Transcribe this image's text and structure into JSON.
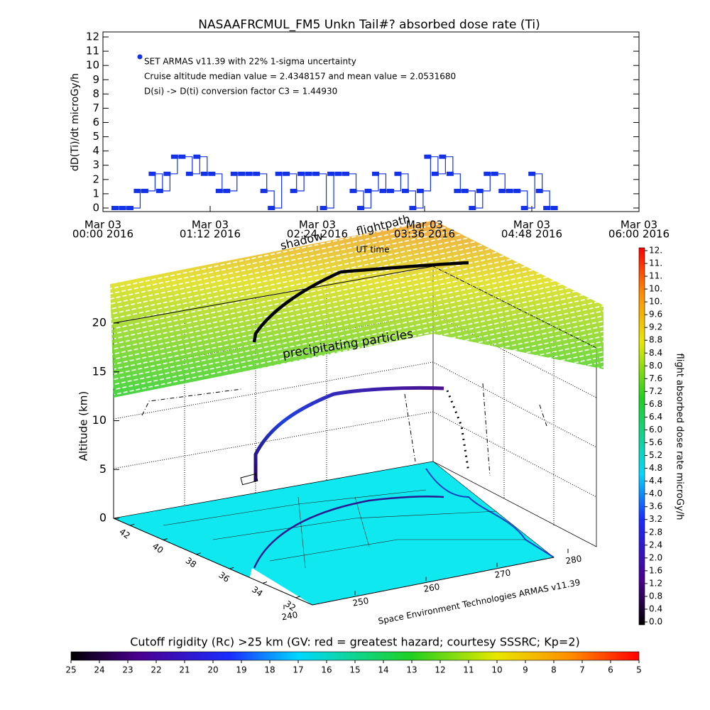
{
  "chart_data": [
    {
      "type": "line",
      "title": "NASAAFRCMUL_FM5 Unkn Tail#? absorbed dose rate (Ti)",
      "ylabel": "dD(Ti)/dt microGy/h",
      "xlabel": "UT time",
      "annotations": [
        "SET ARMAS v11.39 with 22% 1-sigma uncertainty",
        "Cruise altitude median value = 2.4348157 and mean value = 2.0531680",
        "D(si) -> D(ti) conversion factor C3 = 1.44930"
      ],
      "xlim": [
        "2016-03-03 00:00",
        "2016-03-03 06:00"
      ],
      "xticks": [
        {
          "value": "2016-03-03 00:00",
          "label": [
            "Mar 03",
            "00:00 2016"
          ]
        },
        {
          "value": "2016-03-03 01:12",
          "label": [
            "Mar 03",
            "01:12 2016"
          ]
        },
        {
          "value": "2016-03-03 02:24",
          "label": [
            "Mar 03",
            "02:24 2016"
          ]
        },
        {
          "value": "2016-03-03 03:36",
          "label": [
            "Mar 03",
            "03:36 2016"
          ]
        },
        {
          "value": "2016-03-03 04:48",
          "label": [
            "Mar 03",
            "04:48 2016"
          ]
        },
        {
          "value": "2016-03-03 06:00",
          "label": [
            "Mar 03",
            "06:00 2016"
          ]
        }
      ],
      "ylim": [
        -0.25,
        12.35
      ],
      "yticks": [
        0,
        1,
        2,
        3,
        4,
        5,
        6,
        7,
        8,
        9,
        10,
        11,
        12
      ],
      "x": [
        "2016-03-03 00:10",
        "2016-03-03 00:15",
        "2016-03-03 00:20",
        "2016-03-03 00:25",
        "2016-03-03 00:30",
        "2016-03-03 00:35",
        "2016-03-03 00:40",
        "2016-03-03 00:45",
        "2016-03-03 00:50",
        "2016-03-03 00:55",
        "2016-03-03 01:00",
        "2016-03-03 01:05",
        "2016-03-03 01:10",
        "2016-03-03 01:15",
        "2016-03-03 01:20",
        "2016-03-03 01:25",
        "2016-03-03 01:30",
        "2016-03-03 01:35",
        "2016-03-03 01:40",
        "2016-03-03 01:45",
        "2016-03-03 01:50",
        "2016-03-03 01:55",
        "2016-03-03 02:00",
        "2016-03-03 02:05",
        "2016-03-03 02:10",
        "2016-03-03 02:15",
        "2016-03-03 02:20",
        "2016-03-03 02:25",
        "2016-03-03 02:30",
        "2016-03-03 02:35",
        "2016-03-03 02:40",
        "2016-03-03 02:45",
        "2016-03-03 02:50",
        "2016-03-03 02:55",
        "2016-03-03 03:00",
        "2016-03-03 03:05",
        "2016-03-03 03:10",
        "2016-03-03 03:15",
        "2016-03-03 03:20",
        "2016-03-03 03:25",
        "2016-03-03 03:30",
        "2016-03-03 03:35",
        "2016-03-03 03:40",
        "2016-03-03 03:45",
        "2016-03-03 03:50",
        "2016-03-03 03:55",
        "2016-03-03 04:00",
        "2016-03-03 04:05",
        "2016-03-03 04:10",
        "2016-03-03 04:15",
        "2016-03-03 04:20",
        "2016-03-03 04:25",
        "2016-03-03 04:30",
        "2016-03-03 04:35",
        "2016-03-03 04:40",
        "2016-03-03 04:45",
        "2016-03-03 04:50",
        "2016-03-03 04:55",
        "2016-03-03 05:00",
        "2016-03-03 05:05"
      ],
      "series": [
        {
          "color": "#1432e6",
          "values": [
            0,
            0,
            0,
            1.2,
            1.2,
            2.4,
            1.2,
            2.4,
            3.6,
            3.6,
            2.4,
            3.6,
            2.4,
            2.4,
            1.2,
            1.2,
            2.4,
            2.4,
            2.4,
            2.4,
            1.2,
            0,
            2.4,
            2.4,
            1.2,
            2.4,
            2.4,
            2.4,
            0,
            2.4,
            2.4,
            2.4,
            1.2,
            0,
            1.2,
            2.4,
            1.2,
            1.2,
            2.4,
            1.2,
            0,
            1.2,
            3.6,
            2.4,
            3.6,
            2.4,
            1.2,
            1.2,
            0,
            1.2,
            2.4,
            2.4,
            1.2,
            1.2,
            1.2,
            0,
            2.4,
            1.2,
            0,
            0
          ]
        }
      ]
    },
    {
      "type": "surface3d",
      "caption": "Space Environment Technologies ARMAS v11.39",
      "annotations": [
        "shadow",
        "flightpath",
        "precipitating particles"
      ],
      "zlabel": "Altitude (km)",
      "zlim": [
        0,
        20
      ],
      "zticks": [
        0,
        5,
        10,
        15,
        20
      ],
      "latlim": [
        43,
        31
      ],
      "latticks": [
        42,
        40,
        38,
        36,
        34,
        32
      ],
      "lonlim": [
        238,
        282
      ],
      "lonticks": [
        240,
        250,
        260,
        270,
        280
      ],
      "colorbar": {
        "label": "flight absorbed dose rate microGy/h",
        "lim": [
          0,
          11.6
        ],
        "ticks": [
          {
            "value": 0,
            "label": "0.0"
          },
          0.4,
          0.8,
          1.2,
          1.6,
          {
            "value": 2,
            "label": "2.0"
          },
          2.4,
          2.8,
          3.2,
          3.6,
          {
            "value": 4,
            "label": "4.0"
          },
          4.4,
          4.8,
          5.2,
          5.6,
          {
            "value": 6,
            "label": "6.0"
          },
          6.4,
          6.8,
          7.2,
          7.6,
          {
            "value": 8,
            "label": "8.0"
          },
          8.4,
          8.8,
          9.2,
          9.6,
          {
            "value": 10,
            "label": "10."
          },
          {
            "value": 10.4,
            "label": "10."
          },
          {
            "value": 10.8,
            "label": "11."
          },
          {
            "value": 11.2,
            "label": "11."
          },
          {
            "value": 11.6,
            "label": "12."
          }
        ]
      },
      "colorbar2": {
        "label": "Cutoff rigidity (Rc) >25 km (GV: red = greatest hazard; courtesy SSSRC; Kp=2)",
        "lim": [
          25,
          5
        ],
        "ticks": [
          25,
          24,
          23,
          22,
          21,
          20,
          19,
          18,
          17,
          16,
          15,
          14,
          13,
          12,
          11,
          10,
          9,
          8,
          7,
          6,
          5
        ]
      }
    }
  ]
}
